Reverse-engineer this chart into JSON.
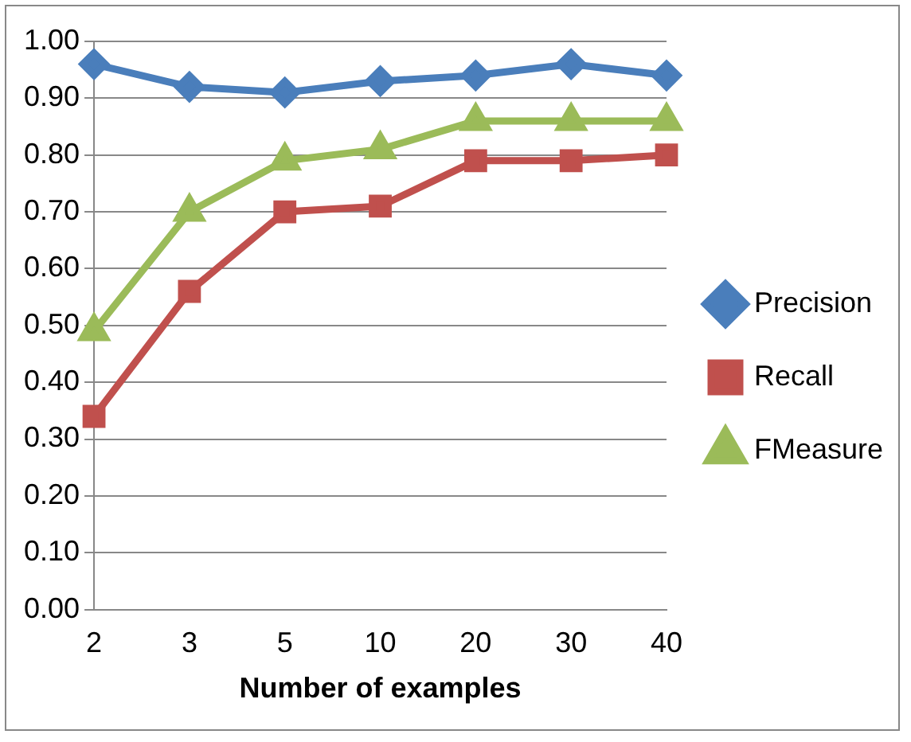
{
  "chart_data": {
    "type": "line",
    "xlabel": "Number of examples",
    "categories": [
      "2",
      "3",
      "5",
      "10",
      "20",
      "30",
      "40"
    ],
    "series": [
      {
        "name": "Precision",
        "color": "#4a7ebb",
        "marker": "diamond",
        "values": [
          0.96,
          0.92,
          0.91,
          0.93,
          0.94,
          0.96,
          0.94
        ]
      },
      {
        "name": "Recall",
        "color": "#c0504d",
        "marker": "square",
        "values": [
          0.34,
          0.56,
          0.7,
          0.71,
          0.79,
          0.79,
          0.8
        ]
      },
      {
        "name": "FMeasure",
        "color": "#9bbb59",
        "marker": "triangle",
        "values": [
          0.49,
          0.7,
          0.79,
          0.81,
          0.86,
          0.86,
          0.86
        ]
      }
    ],
    "ylim": [
      0,
      1
    ],
    "yticks": [
      {
        "value": 0,
        "label": "0.00"
      },
      {
        "value": 0.1,
        "label": "0.10"
      },
      {
        "value": 0.2,
        "label": "0.20"
      },
      {
        "value": 0.3,
        "label": "0.30"
      },
      {
        "value": 0.4,
        "label": "0.40"
      },
      {
        "value": 0.5,
        "label": "0.50"
      },
      {
        "value": 0.6,
        "label": "0.60"
      },
      {
        "value": 0.7,
        "label": "0.70"
      },
      {
        "value": 0.8,
        "label": "0.80"
      },
      {
        "value": 0.9,
        "label": "0.90"
      },
      {
        "value": 1,
        "label": "1.00"
      }
    ],
    "grid": "y",
    "legend": "right",
    "line_style": "solid"
  }
}
